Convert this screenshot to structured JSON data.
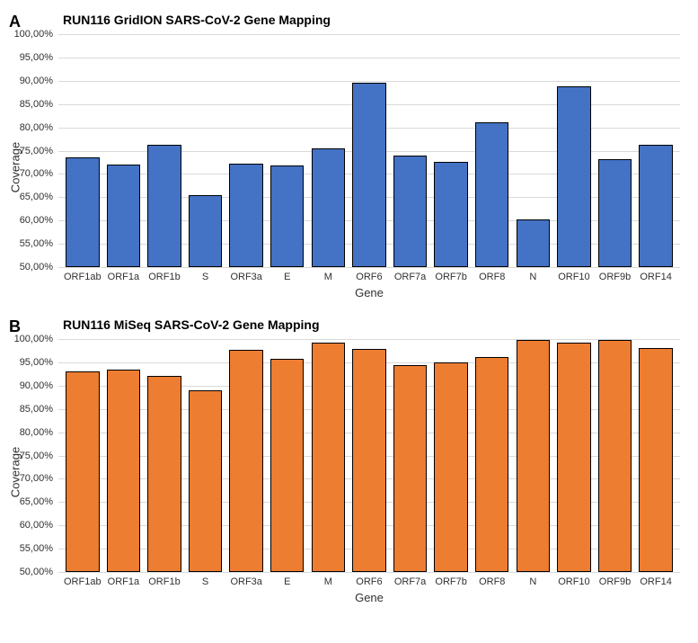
{
  "panels": {
    "A": {
      "letter": "A",
      "title": "RUN116 GridION SARS-CoV-2 Gene Mapping",
      "type": "bar",
      "ylabel": "Coverage",
      "xlabel": "Gene",
      "ylim": [
        50,
        100
      ],
      "ytick_step": 5,
      "ytick_format": "percent_comma",
      "bar_color": "#4472c4",
      "bar_border_color": "#000000",
      "grid_color": "#d9d9d9",
      "background_color": "#ffffff",
      "title_fontsize": 14,
      "label_fontsize": 13,
      "tick_fontsize": 11,
      "categories": [
        "ORF1ab",
        "ORF1a",
        "ORF1b",
        "S",
        "ORF3a",
        "E",
        "M",
        "ORF6",
        "ORF7a",
        "ORF7b",
        "ORF8",
        "N",
        "ORF10",
        "ORF9b",
        "ORF14"
      ],
      "values": [
        73.5,
        72.0,
        76.2,
        65.5,
        72.3,
        71.8,
        75.5,
        89.5,
        74.0,
        72.5,
        81.0,
        60.2,
        88.8,
        73.2,
        76.3
      ]
    },
    "B": {
      "letter": "B",
      "title": "RUN116 MiSeq SARS-CoV-2 Gene Mapping",
      "type": "bar",
      "ylabel": "Coverage",
      "xlabel": "Gene",
      "ylim": [
        50,
        100
      ],
      "ytick_step": 5,
      "ytick_format": "percent_comma",
      "bar_color": "#ed7d31",
      "bar_border_color": "#000000",
      "grid_color": "#d9d9d9",
      "background_color": "#ffffff",
      "title_fontsize": 14,
      "label_fontsize": 13,
      "tick_fontsize": 11,
      "categories": [
        "ORF1ab",
        "ORF1a",
        "ORF1b",
        "S",
        "ORF3a",
        "E",
        "M",
        "ORF6",
        "ORF7a",
        "ORF7b",
        "ORF8",
        "N",
        "ORF10",
        "ORF9b",
        "ORF14"
      ],
      "values": [
        93.0,
        93.5,
        92.0,
        89.0,
        97.7,
        95.7,
        99.3,
        97.9,
        94.5,
        95.0,
        96.2,
        99.9,
        99.2,
        99.8,
        98.0
      ]
    }
  }
}
